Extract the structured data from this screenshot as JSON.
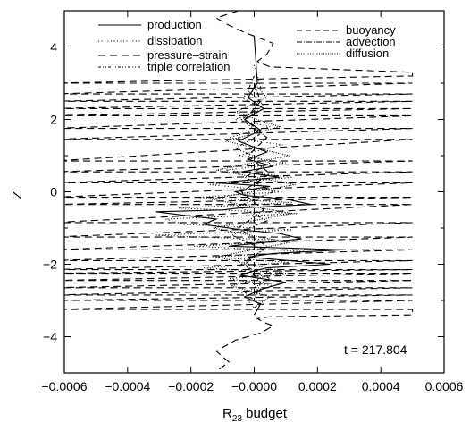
{
  "chart_data": {
    "type": "line",
    "xlabel_main": "R",
    "xlabel_sub": "23",
    "xlabel_rest": " budget",
    "ylabel": "Z",
    "xlim": [
      -0.0006,
      0.0006
    ],
    "ylim": [
      -5,
      5
    ],
    "x_ticks": [
      -0.0006,
      -0.0004,
      -0.0002,
      0.0,
      0.0002,
      0.0004,
      0.0006
    ],
    "x_tick_labels": [
      "−0.0006",
      "−0.0004",
      "−0.0002",
      "−0.0000",
      "0.0002",
      "0.0004",
      "0.0006"
    ],
    "y_ticks": [
      -4,
      -2,
      0,
      2,
      4
    ],
    "y_tick_labels": [
      "−4",
      "−2",
      "0",
      "2",
      "4"
    ],
    "grid": false,
    "legend_position": "top",
    "annotation": "t = 217.804",
    "series": [
      {
        "name": "production",
        "dash": "none",
        "x": [
          0.0,
          1e-05,
          -2e-05,
          3e-05,
          -3e-05,
          2e-05,
          -5e-05,
          4e-05,
          -2e-05,
          6e-05,
          -4e-05,
          8e-05,
          -0.00012,
          5e-05,
          -6e-05,
          -3e-05,
          0.0001,
          0.00018,
          -5e-05,
          -0.0001,
          -0.00031,
          -0.00022,
          -0.00012,
          -0.00016,
          -4e-05,
          8e-05,
          0.00015,
          3e-05,
          -8e-05,
          0.00028,
          6e-05,
          -2e-05,
          0.00011,
          0.00024,
          4e-05,
          -5e-05,
          0.0001,
          2e-05,
          -3e-05,
          2e-05,
          0.0
        ],
        "y": [
          4.3,
          3.0,
          2.6,
          2.3,
          2.0,
          1.7,
          1.4,
          1.1,
          0.9,
          0.7,
          0.55,
          0.4,
          0.25,
          0.15,
          0.0,
          -0.1,
          -0.2,
          -0.35,
          -0.45,
          -0.5,
          -0.55,
          -0.65,
          -0.75,
          -0.9,
          -1.05,
          -1.15,
          -1.3,
          -1.4,
          -1.5,
          -1.6,
          -1.7,
          -1.8,
          -1.9,
          -2.0,
          -2.1,
          -2.3,
          -2.5,
          -2.7,
          -2.9,
          -3.1,
          -3.4
        ]
      },
      {
        "name": "dissipation",
        "dash": "1,2.5",
        "x": [
          0.0,
          2e-05,
          -4e-05,
          3e-05,
          -6e-05,
          5e-05,
          -8e-05,
          9e-05,
          -5e-05,
          0.0001,
          -9e-05,
          0.00012,
          -0.00014,
          9e-05,
          -0.00018,
          0.00012,
          -0.00024,
          0.00014,
          -0.00028,
          -0.00022,
          0.00012,
          -0.00031,
          0.00014,
          -0.00019,
          0.00016,
          -0.00013,
          0.00011,
          -0.00016,
          0.0001,
          -8e-05,
          6e-05,
          -4e-05,
          0.0
        ],
        "y": [
          3.5,
          2.9,
          2.6,
          2.3,
          2.0,
          1.8,
          1.5,
          1.3,
          1.0,
          0.8,
          0.6,
          0.4,
          0.2,
          0.0,
          -0.15,
          -0.3,
          -0.45,
          -0.6,
          -0.75,
          -0.9,
          -1.05,
          -1.2,
          -1.35,
          -1.5,
          -1.65,
          -1.8,
          -1.95,
          -2.1,
          -2.25,
          -2.4,
          -2.6,
          -2.8,
          -3.2
        ]
      },
      {
        "name": "pressure–strain",
        "dash": "8,5",
        "x": [
          -0.00011,
          -8e-05,
          -0.00012,
          -6e-05,
          2e-05,
          6e-05,
          3e-05,
          1e-05,
          5e-05,
          0.0005,
          0.0005,
          -0.00064,
          0.0005,
          -0.00064,
          0.0005,
          -0.00064,
          0.0005,
          -0.00064,
          0.0005,
          -0.00064,
          0.0005,
          -0.00064,
          0.0005,
          -0.00064,
          0.0005,
          -0.00064,
          0.0005,
          -0.00064,
          0.0005,
          -0.00064,
          0.0005,
          -0.00064,
          0.0005,
          -0.00064,
          0.0005,
          -0.00064,
          0.0005,
          -0.00064,
          0.0005,
          -0.00064,
          0.0005,
          -0.00064,
          0.0005,
          -0.00064,
          0.0005,
          -0.00064,
          0.0005,
          -0.00064,
          0.0005,
          -0.00064,
          0.0005,
          -0.00064,
          0.0005,
          -0.00064,
          0.0005,
          -0.00064,
          0.0005,
          0.0005,
          5e-05,
          1e-05,
          4e-05,
          6e-05,
          -3e-05,
          -8e-05,
          -0.00012,
          -5e-05
        ],
        "y": [
          -4.9,
          -4.7,
          -4.4,
          -4.1,
          -3.9,
          -3.7,
          -3.6,
          -3.5,
          -3.45,
          -3.4,
          -3.25,
          -3.25,
          -3.0,
          -3.0,
          -2.85,
          -2.85,
          -2.65,
          -2.65,
          -2.45,
          -2.45,
          -2.25,
          -2.25,
          -2.15,
          -2.15,
          -1.9,
          -1.9,
          -1.6,
          -1.6,
          -1.25,
          -1.25,
          -0.85,
          -0.85,
          -0.35,
          -0.35,
          -0.15,
          -0.15,
          0.25,
          0.25,
          0.55,
          0.55,
          0.85,
          0.85,
          1.45,
          1.45,
          1.75,
          1.75,
          2.1,
          2.1,
          2.3,
          2.3,
          2.5,
          2.5,
          2.7,
          2.7,
          3.0,
          3.0,
          3.2,
          3.3,
          3.45,
          3.6,
          3.8,
          4.1,
          4.4,
          4.6,
          4.8,
          5.0
        ]
      },
      {
        "name": "triple correlation",
        "dash": "3,2,1,2,1,2",
        "x": [
          0.0,
          -2e-05,
          3e-05,
          -4e-05,
          2e-05,
          -6e-05,
          5e-05,
          -3e-05,
          6e-05,
          -5e-05,
          4e-05,
          -7e-05,
          3e-05,
          -4e-05,
          5e-05,
          -3e-05,
          2e-05,
          0.0
        ],
        "y": [
          3.2,
          2.8,
          2.4,
          2.0,
          1.6,
          1.2,
          0.8,
          0.4,
          0.0,
          -0.4,
          -0.8,
          -1.2,
          -1.6,
          -2.0,
          -2.4,
          -2.8,
          -3.1,
          -3.4
        ]
      },
      {
        "name": "buoyancy",
        "dash": "6,4",
        "x": [
          0.0,
          0.0,
          0.0,
          0.0
        ],
        "y": [
          3.0,
          1.0,
          -1.0,
          -3.0
        ]
      },
      {
        "name": "advection",
        "dash": "6,2,1,2",
        "x": [
          0.0,
          2e-05,
          -3e-05,
          4e-05,
          -2e-05,
          5e-05,
          -4e-05,
          3e-05,
          -5e-05,
          4e-05,
          -3e-05,
          2e-05,
          0.0
        ],
        "y": [
          3.0,
          2.5,
          2.0,
          1.5,
          1.0,
          0.5,
          0.0,
          -0.5,
          -1.0,
          -1.5,
          -2.0,
          -2.5,
          -3.0
        ]
      },
      {
        "name": "diffusion",
        "dash": "1,1.5",
        "x": [
          0.0,
          4e-05,
          -6e-05,
          8e-05,
          -9e-05,
          0.00011,
          -0.00012,
          0.00013,
          -0.00014,
          0.00012,
          -0.00013,
          0.00011,
          -0.00012,
          9e-05,
          -7e-05,
          5e-05,
          0.0
        ],
        "y": [
          3.0,
          2.6,
          2.2,
          1.8,
          1.4,
          1.0,
          0.6,
          0.2,
          -0.2,
          -0.6,
          -1.0,
          -1.4,
          -1.8,
          -2.2,
          -2.6,
          -2.9,
          -3.2
        ]
      }
    ]
  }
}
